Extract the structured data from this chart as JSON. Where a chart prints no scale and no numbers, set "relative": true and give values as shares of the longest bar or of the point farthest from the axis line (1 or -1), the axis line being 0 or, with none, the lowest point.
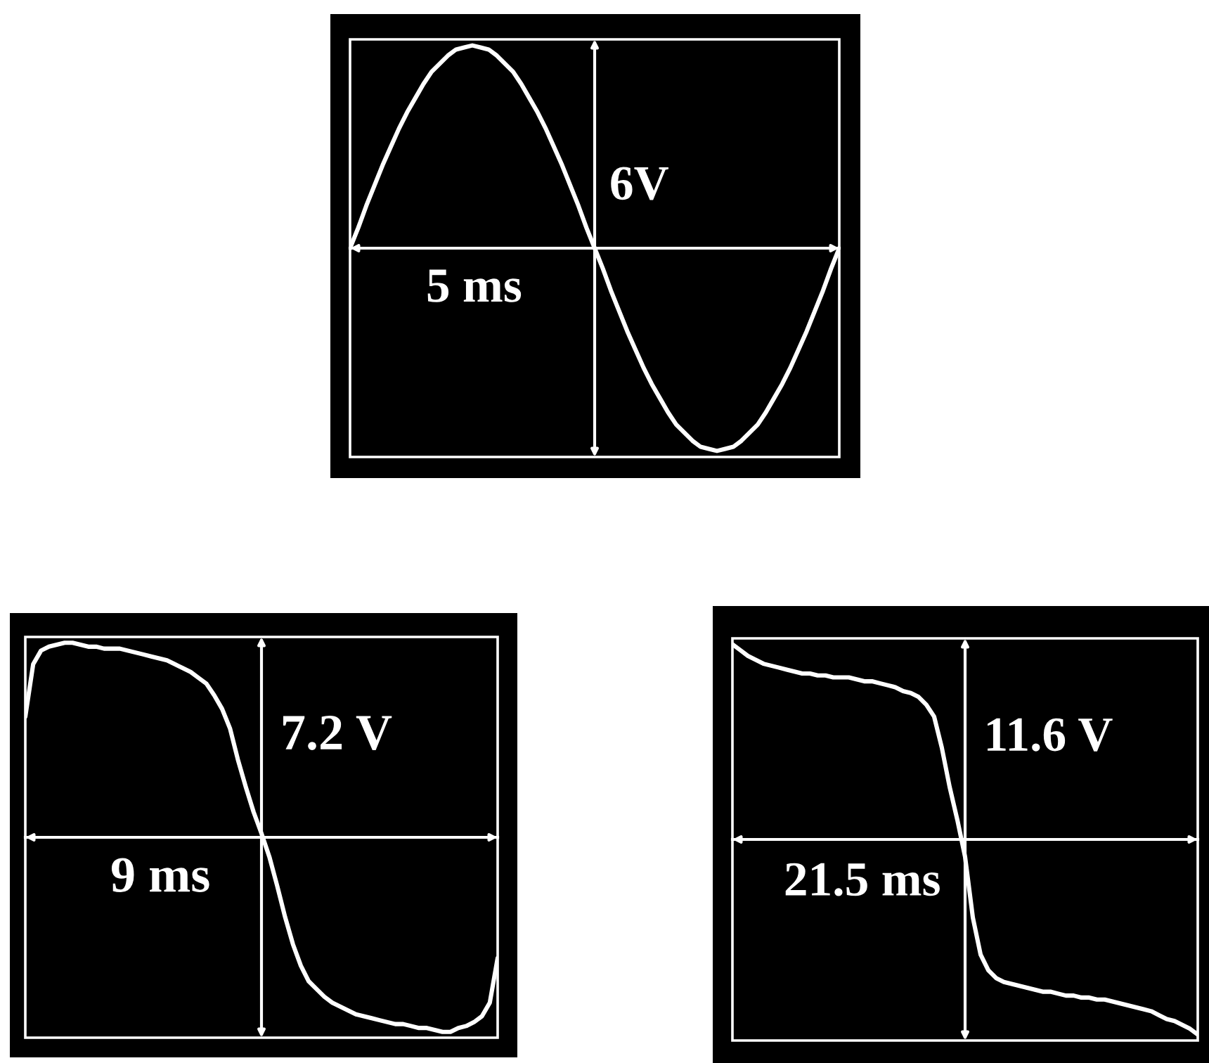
{
  "chart_data": [
    {
      "type": "line",
      "relative": true,
      "categories": [
        null,
        null,
        null,
        null,
        null,
        null,
        null,
        null,
        null,
        null,
        null,
        null,
        null,
        null,
        null,
        null,
        null,
        null,
        null,
        null,
        null,
        null,
        null,
        null,
        null,
        null,
        null,
        null,
        null,
        null,
        null,
        null,
        null,
        null,
        null,
        null,
        null,
        null,
        null,
        null,
        null,
        null,
        null,
        null,
        null,
        null,
        null,
        null,
        null,
        null,
        null,
        null,
        null,
        null,
        null,
        null,
        null,
        null,
        null,
        null,
        null
      ],
      "series": [
        {
          "color": "#ffffff",
          "values": [
            0,
            0.1,
            0.21,
            0.31,
            0.41,
            0.5,
            0.59,
            0.67,
            0.74,
            0.81,
            0.87,
            0.91,
            0.95,
            0.98,
            0.99,
            1.0,
            0.99,
            0.98,
            0.95,
            0.91,
            0.87,
            0.81,
            0.74,
            0.67,
            0.59,
            0.5,
            0.41,
            0.31,
            0.21,
            0.1,
            0,
            -0.1,
            -0.21,
            -0.31,
            -0.41,
            -0.5,
            -0.59,
            -0.67,
            -0.74,
            -0.81,
            -0.87,
            -0.91,
            -0.95,
            -0.98,
            -0.99,
            -1.0,
            -0.99,
            -0.98,
            -0.95,
            -0.91,
            -0.87,
            -0.81,
            -0.74,
            -0.67,
            -0.59,
            -0.5,
            -0.41,
            -0.31,
            -0.21,
            -0.1,
            0
          ]
        }
      ],
      "annotations": [
        "6V",
        "5 ms"
      ]
    },
    {
      "type": "line",
      "relative": true,
      "categories": [
        null,
        null,
        null,
        null,
        null,
        null,
        null,
        null,
        null,
        null,
        null,
        null,
        null,
        null,
        null,
        null,
        null,
        null,
        null,
        null,
        null,
        null,
        null,
        null,
        null,
        null,
        null,
        null,
        null,
        null,
        null,
        null,
        null,
        null,
        null,
        null,
        null,
        null,
        null,
        null,
        null,
        null,
        null,
        null,
        null,
        null,
        null,
        null,
        null,
        null,
        null,
        null,
        null,
        null,
        null,
        null,
        null,
        null,
        null,
        null,
        null
      ],
      "series": [
        {
          "color": "#ffffff",
          "values": [
            0.62,
            0.89,
            0.96,
            0.98,
            0.99,
            1.0,
            1.0,
            0.99,
            0.98,
            0.98,
            0.97,
            0.97,
            0.97,
            0.96,
            0.95,
            0.94,
            0.93,
            0.92,
            0.91,
            0.89,
            0.87,
            0.85,
            0.82,
            0.79,
            0.73,
            0.66,
            0.56,
            0.4,
            0.26,
            0.13,
            0.02,
            -0.1,
            -0.25,
            -0.41,
            -0.55,
            -0.66,
            -0.74,
            -0.78,
            -0.82,
            -0.85,
            -0.87,
            -0.89,
            -0.91,
            -0.92,
            -0.93,
            -0.94,
            -0.95,
            -0.96,
            -0.96,
            -0.97,
            -0.98,
            -0.98,
            -0.99,
            -1.0,
            -1.0,
            -0.98,
            -0.97,
            -0.95,
            -0.92,
            -0.85,
            -0.62
          ]
        }
      ],
      "annotations": [
        "7.2 V",
        "9 ms"
      ]
    },
    {
      "type": "line",
      "relative": true,
      "categories": [
        null,
        null,
        null,
        null,
        null,
        null,
        null,
        null,
        null,
        null,
        null,
        null,
        null,
        null,
        null,
        null,
        null,
        null,
        null,
        null,
        null,
        null,
        null,
        null,
        null,
        null,
        null,
        null,
        null,
        null,
        null,
        null,
        null,
        null,
        null,
        null,
        null,
        null,
        null,
        null,
        null,
        null,
        null,
        null,
        null,
        null,
        null,
        null,
        null,
        null,
        null,
        null,
        null,
        null,
        null,
        null,
        null,
        null,
        null,
        null,
        null
      ],
      "series": [
        {
          "color": "#ffffff",
          "values": [
            1.0,
            0.97,
            0.94,
            0.92,
            0.9,
            0.89,
            0.88,
            0.87,
            0.86,
            0.85,
            0.85,
            0.84,
            0.84,
            0.83,
            0.83,
            0.83,
            0.82,
            0.81,
            0.81,
            0.8,
            0.79,
            0.78,
            0.76,
            0.75,
            0.73,
            0.69,
            0.63,
            0.47,
            0.27,
            0.1,
            -0.09,
            -0.4,
            -0.59,
            -0.67,
            -0.71,
            -0.73,
            -0.74,
            -0.75,
            -0.76,
            -0.77,
            -0.78,
            -0.78,
            -0.79,
            -0.8,
            -0.8,
            -0.81,
            -0.81,
            -0.82,
            -0.82,
            -0.83,
            -0.84,
            -0.85,
            -0.86,
            -0.87,
            -0.88,
            -0.9,
            -0.92,
            -0.93,
            -0.95,
            -0.97,
            -1.0
          ]
        }
      ],
      "annotations": [
        "11.6 V",
        "21.5 ms"
      ]
    }
  ]
}
